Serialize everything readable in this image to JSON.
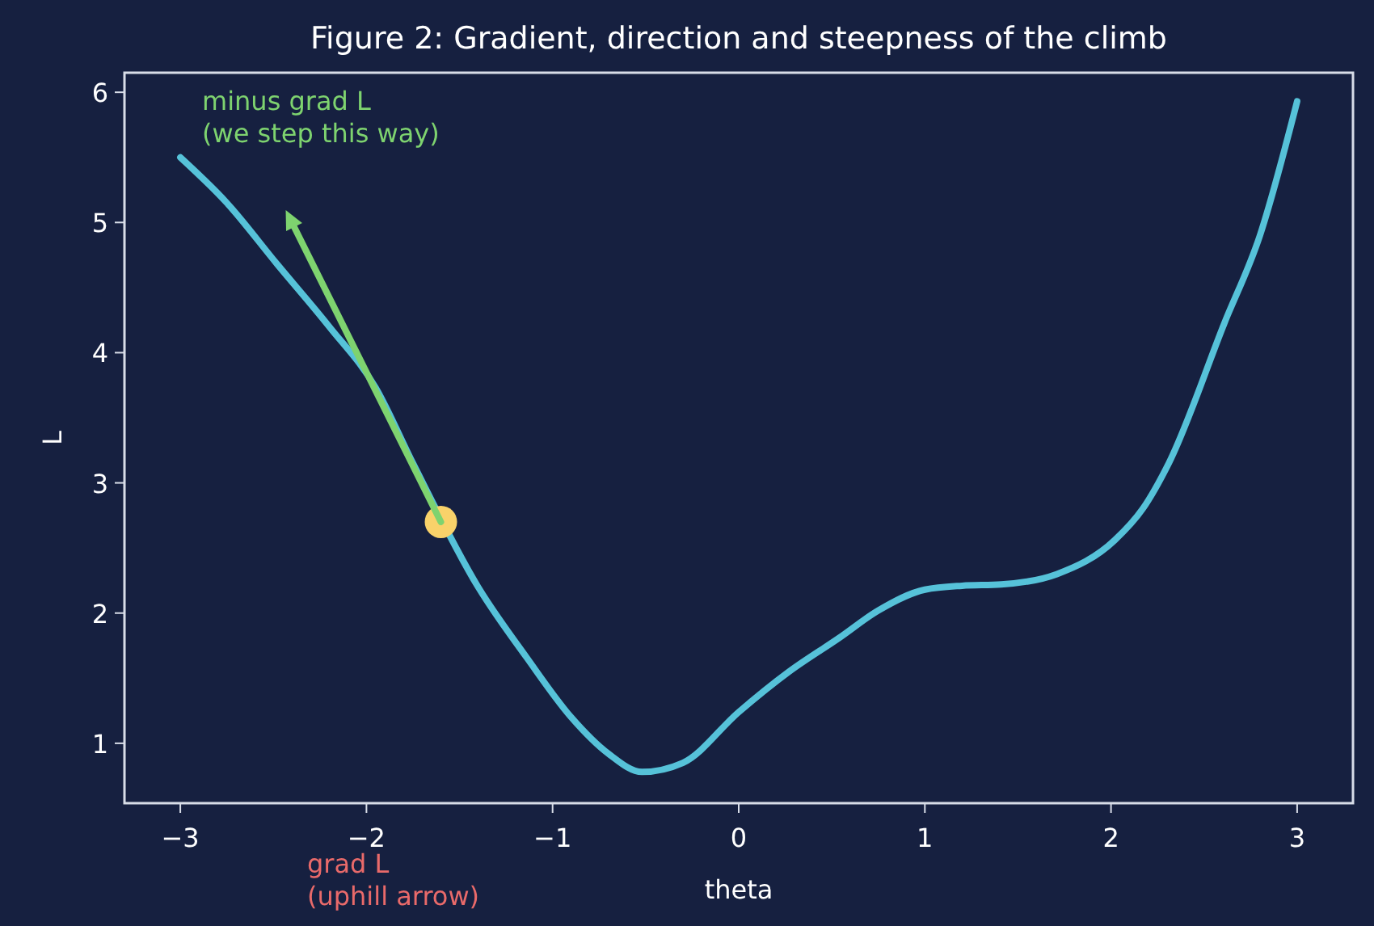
{
  "chart_data": {
    "type": "line",
    "title": "Figure 2: Gradient, direction and steepness of the climb",
    "xlabel": "theta",
    "ylabel": "L",
    "xlim": [
      -3.3,
      3.3
    ],
    "ylim": [
      0.54,
      6.15
    ],
    "xticks": [
      {
        "value": -3,
        "label": "−3"
      },
      {
        "value": -2,
        "label": "−2"
      },
      {
        "value": -1,
        "label": "−1"
      },
      0,
      1,
      2,
      3
    ],
    "yticks": [
      1,
      2,
      3,
      4,
      5,
      6
    ],
    "grid": false,
    "series": [
      {
        "color": "#56c2d9",
        "x": [
          -3,
          -2.75,
          -2.48,
          -2.2,
          -1.95,
          -1.75,
          -1.4,
          -1.14,
          -0.9,
          -0.7,
          -0.52,
          -0.3,
          0,
          0.27,
          0.54,
          0.75,
          1.0,
          1.2,
          1.41,
          1.71,
          2.02,
          2.17,
          2.31,
          2.61,
          2.8,
          3.0
        ],
        "values": [
          5.5,
          5.15,
          4.68,
          4.2,
          3.73,
          3.15,
          2.2,
          1.66,
          1.2,
          0.92,
          0.78,
          0.85,
          1.24,
          1.55,
          1.81,
          2.02,
          2.18,
          2.21,
          2.22,
          2.3,
          2.56,
          2.8,
          3.15,
          4.23,
          4.9,
          5.93
        ]
      },
      {
        "type": "scatter",
        "color": "#f9d26a",
        "marker": "circle",
        "x": [
          -1.6
        ],
        "values": [
          2.7
        ]
      }
    ],
    "annotations": [
      "minus grad L\n(we step this way)",
      "grad L\n(uphill arrow)"
    ]
  }
}
